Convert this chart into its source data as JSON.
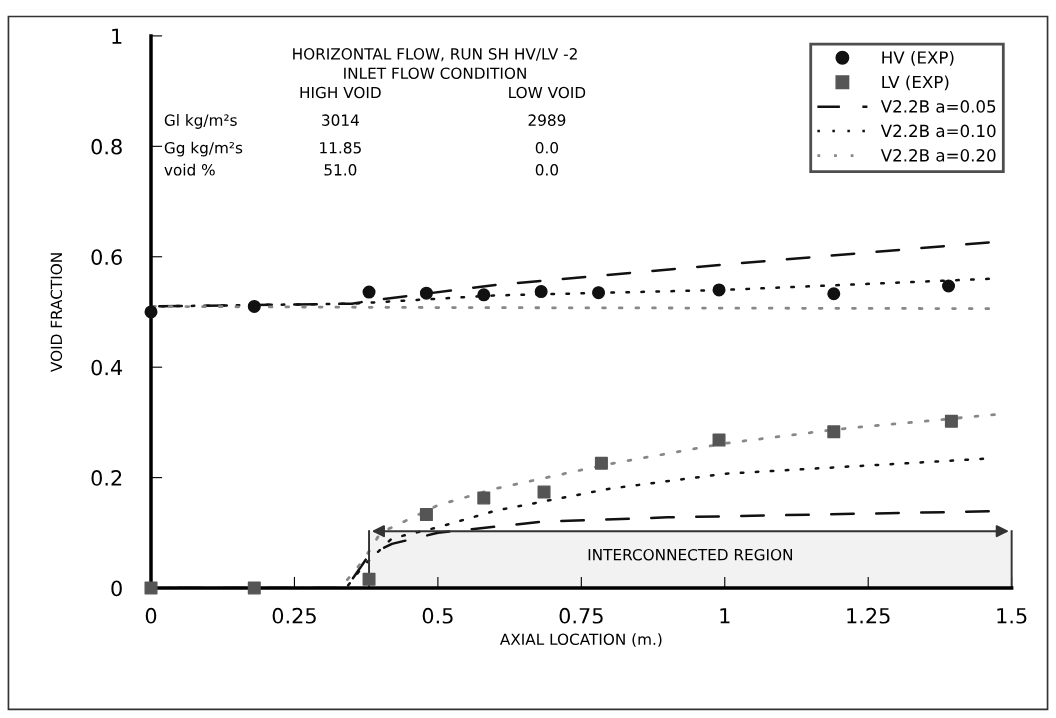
{
  "chart_data": {
    "type": "line",
    "xlabel": "AXIAL LOCATION (m.)",
    "ylabel": "VOID FRACTION",
    "xlim": [
      0,
      1.5
    ],
    "ylim": [
      0,
      1
    ],
    "xticks": [
      0,
      0.25,
      0.5,
      0.75,
      1,
      1.25,
      1.5
    ],
    "yticks": [
      0,
      0.2,
      0.4,
      0.6,
      0.8,
      1
    ],
    "legend": "top right",
    "grid": false,
    "series": [
      {
        "name": "HV (EXP)",
        "type": "scatter",
        "marker": "circle",
        "color": "#111111",
        "x": [
          0,
          0.18,
          0.38,
          0.48,
          0.58,
          0.68,
          0.78,
          0.99,
          1.19,
          1.39
        ],
        "values": [
          0.5,
          0.51,
          0.536,
          0.534,
          0.531,
          0.537,
          0.535,
          0.54,
          0.533,
          0.547
        ]
      },
      {
        "name": "LV (EXP)",
        "type": "scatter",
        "marker": "square",
        "color": "#555555",
        "x": [
          0,
          0.18,
          0.38,
          0.48,
          0.58,
          0.685,
          0.785,
          0.99,
          1.19,
          1.395
        ],
        "values": [
          0,
          0,
          0.016,
          0.133,
          0.163,
          0.174,
          0.226,
          0.268,
          0.283,
          0.302
        ]
      },
      {
        "name": "V2.2B a=0.05",
        "line_style": "dashed",
        "color": "#111111",
        "x": [
          0,
          0.35,
          0.38,
          0.6,
          1.0,
          1.46
        ],
        "values": [
          0.51,
          0.515,
          0.52,
          0.549,
          0.586,
          0.626
        ]
      },
      {
        "line_style": "dashed",
        "color": "#111111",
        "x": [
          0,
          0.34,
          0.38,
          0.42,
          0.5,
          0.68,
          0.9,
          1.46
        ],
        "values": [
          0,
          0,
          0.06,
          0.08,
          0.1,
          0.12,
          0.128,
          0.139
        ]
      },
      {
        "name": "V2.2B a=0.10",
        "line_style": "dotted",
        "color": "#111111",
        "x": [
          0,
          0.35,
          0.6,
          1.0,
          1.46
        ],
        "values": [
          0.51,
          0.515,
          0.53,
          0.54,
          0.56
        ]
      },
      {
        "line_style": "dotted",
        "color": "#111111",
        "x": [
          0.34,
          0.37,
          0.42,
          0.5,
          0.6,
          0.8,
          1.0,
          1.45
        ],
        "values": [
          0,
          0.04,
          0.09,
          0.11,
          0.14,
          0.18,
          0.207,
          0.234
        ]
      },
      {
        "name": "V2.2B a=0.20",
        "line_style": "dotted",
        "color": "#888888",
        "x": [
          0,
          0.5,
          1.0,
          1.46
        ],
        "values": [
          0.51,
          0.508,
          0.507,
          0.506
        ]
      },
      {
        "line_style": "dotted",
        "color": "#888888",
        "x": [
          0,
          0.33,
          0.37,
          0.4,
          0.5,
          0.6,
          0.8,
          1.0,
          1.2,
          1.47
        ],
        "values": [
          0,
          0,
          0.05,
          0.1,
          0.15,
          0.18,
          0.225,
          0.262,
          0.288,
          0.314
        ]
      }
    ],
    "bands": [
      {
        "axis": "x",
        "from": 0.38,
        "to": 1.5,
        "label": "INTERCONNECTED REGION",
        "color": "#f2f2f2"
      }
    ],
    "annotations": [
      "HORIZONTAL FLOW, RUN SH HV/LV -2",
      "INLET FLOW CONDITION",
      "HIGH VOID",
      "LOW VOID",
      "Gl kg/m²s",
      "3014",
      "2989",
      "Gg kg/m²s",
      "11.85",
      "0.0",
      "void %",
      "51.0",
      "0.0"
    ]
  }
}
